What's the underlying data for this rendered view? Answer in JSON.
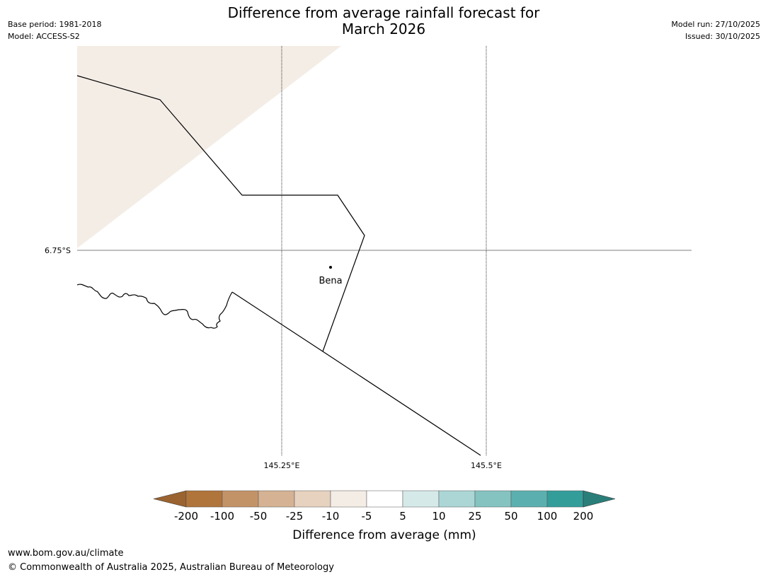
{
  "title": {
    "line1": "Difference from average rainfall forecast for",
    "line2": "March 2026"
  },
  "meta_left": {
    "base_period": "Base period: 1981-2018",
    "model": "Model: ACCESS-S2"
  },
  "meta_right": {
    "model_run": "Model run: 27/10/2025",
    "issued": "Issued: 30/10/2025"
  },
  "map": {
    "lat_gridlines": [
      "6.75°S"
    ],
    "lon_gridlines": [
      "145.25°E",
      "145.5°E"
    ],
    "towns": [
      {
        "name": "Bena"
      }
    ],
    "colors": {
      "land_tint": "#f4ede6",
      "boundary": "#000000",
      "gridline": "#000000"
    }
  },
  "colorbar": {
    "label": "Difference from average (mm)",
    "ticks": [
      "-200",
      "-100",
      "-50",
      "-25",
      "-10",
      "-5",
      "5",
      "10",
      "25",
      "50",
      "100",
      "200"
    ],
    "colors": {
      "extend_low": "#9a6330",
      "bins": [
        "#b0753b",
        "#c39368",
        "#d4b293",
        "#e6d2bf",
        "#f4ede6",
        "#ffffff",
        "#d6e9e9",
        "#acd6d6",
        "#84c3c0",
        "#5bb0af",
        "#339d9a"
      ],
      "extend_high": "#2a7e79"
    }
  },
  "footer": {
    "url": "www.bom.gov.au/climate",
    "copyright": "© Commonwealth of Australia 2025, Australian Bureau of Meteorology"
  }
}
